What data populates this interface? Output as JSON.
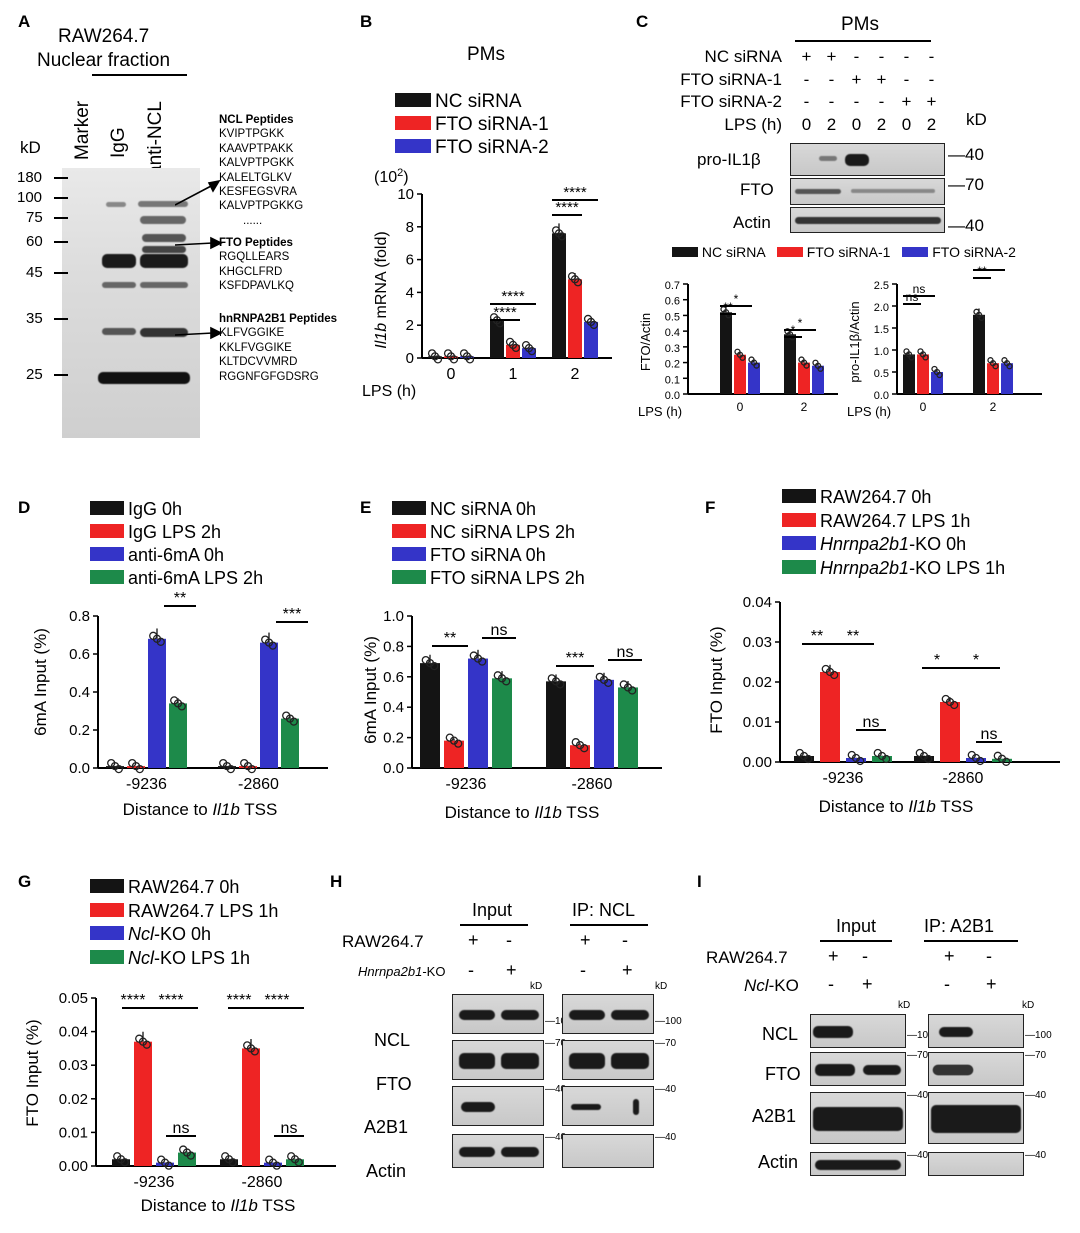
{
  "panels": {
    "A": {
      "label": "A",
      "cell": "RAW264.7",
      "fraction": "Nuclear fraction",
      "kd": "kD",
      "lanes": [
        "Marker",
        "IgG",
        "anti-NCL"
      ],
      "ladder": [
        "180",
        "100",
        "75",
        "60",
        "45",
        "35",
        "25"
      ],
      "ncl_title": "NCL Peptides",
      "ncl": [
        "KVIPTPGKK",
        "KAAVPTPAKK",
        "KALVPTPGKK",
        "KALELTGLKV",
        "KESFEGSVRA",
        "KALVPTPGKKG",
        "......"
      ],
      "fto_title": "FTO Peptides",
      "fto": [
        "RGQLLEARS",
        "KHGCLFRD",
        "KSFDPAVLKQ"
      ],
      "hn_title": "hnRNPA2B1 Peptides",
      "hn": [
        "KLFVGGIKE",
        "KKLFVGGIKE",
        "KLTDCVVMRD",
        "RGGNFGFGDSRG"
      ]
    },
    "B": {
      "label": "B",
      "title": "PMs",
      "legend": [
        "NC siRNA",
        "FTO siRNA-1",
        "FTO siRNA-2"
      ],
      "exp": "(10",
      "exp_sup": "2",
      "exp_close": ")",
      "ylabel_italic": "Il1b",
      "ylabel_rest": " mRNA (fold)",
      "yticks": [
        "0",
        "2",
        "4",
        "6",
        "8",
        "10"
      ],
      "xlabel": "LPS (h)",
      "xticks": [
        "0",
        "1",
        "2"
      ],
      "sig": [
        "****",
        "****",
        "****",
        "****"
      ]
    },
    "C": {
      "label": "C",
      "title": "PMs",
      "rows": [
        "NC siRNA",
        "FTO siRNA-1",
        "FTO siRNA-2",
        "LPS (h)"
      ],
      "signs": [
        [
          "+",
          "+",
          "-",
          "-",
          "-",
          "-"
        ],
        [
          "-",
          "-",
          "+",
          "+",
          "-",
          "-"
        ],
        [
          "-",
          "-",
          "-",
          "-",
          "+",
          "+"
        ],
        [
          "0",
          "2",
          "0",
          "2",
          "0",
          "2"
        ]
      ],
      "kd": "kD",
      "blots": [
        "pro-IL1β",
        "FTO",
        "Actin"
      ],
      "kdvals": [
        "40",
        "70",
        "40"
      ],
      "legend": [
        "NC siRNA",
        "FTO siRNA-1",
        "FTO siRNA-2"
      ],
      "g1": {
        "ylabel": "FTO/Actin",
        "yticks": [
          "0.0",
          "0.1",
          "0.2",
          "0.3",
          "0.4",
          "0.5",
          "0.6",
          "0.7"
        ],
        "xlabel": "LPS (h)",
        "xticks": [
          "0",
          "2"
        ],
        "sig": [
          "**",
          "*",
          "*",
          "*"
        ]
      },
      "g2": {
        "ylabel": "pro-IL1β/Actin",
        "yticks": [
          "0.0",
          "0.5",
          "1.0",
          "1.5",
          "2.0",
          "2.5"
        ],
        "xlabel": "LPS (h)",
        "xticks": [
          "0",
          "2"
        ],
        "sig": [
          "ns",
          "ns",
          "**",
          "*"
        ]
      }
    },
    "D": {
      "label": "D",
      "legend": [
        "IgG 0h",
        "IgG LPS 2h",
        "anti-6mA 0h",
        "anti-6mA LPS 2h"
      ],
      "ylabel": "6mA Input (%)",
      "yticks": [
        "0.0",
        "0.2",
        "0.4",
        "0.6",
        "0.8"
      ],
      "xticks": [
        "-9236",
        "-2860"
      ],
      "xlabel": "Distance to ",
      "xlabel_it": "Il1b",
      "xlabel_end": " TSS",
      "sig": [
        "**",
        "***"
      ]
    },
    "E": {
      "label": "E",
      "legend": [
        "NC siRNA 0h",
        "NC siRNA LPS 2h",
        "FTO siRNA 0h",
        "FTO siRNA LPS 2h"
      ],
      "ylabel": "6mA Input (%)",
      "yticks": [
        "0.0",
        "0.2",
        "0.4",
        "0.6",
        "0.8",
        "1.0"
      ],
      "xticks": [
        "-9236",
        "-2860"
      ],
      "xlabel": "Distance to ",
      "xlabel_it": "Il1b",
      "xlabel_end": " TSS",
      "sig": [
        "**",
        "ns",
        "***",
        "ns"
      ]
    },
    "F": {
      "label": "F",
      "legend": [
        "RAW264.7 0h",
        "RAW264.7 LPS 1h",
        "Hnrnpa2b1",
        "-KO 0h",
        "Hnrnpa2b1",
        "-KO LPS 1h"
      ],
      "ylabel": "FTO Input (%)",
      "yticks": [
        "0.00",
        "0.01",
        "0.02",
        "0.03",
        "0.04"
      ],
      "xticks": [
        "-9236",
        "-2860"
      ],
      "xlabel": "Distance to ",
      "xlabel_it": "Il1b",
      "xlabel_end": " TSS",
      "sig": [
        "**",
        "**",
        "ns",
        "*",
        "*",
        "ns"
      ]
    },
    "G": {
      "label": "G",
      "legend": [
        "RAW264.7 0h",
        "RAW264.7 LPS 1h",
        "Ncl",
        "-KO 0h",
        "Ncl",
        "-KO LPS 1h"
      ],
      "ylabel": "FTO Input (%)",
      "yticks": [
        "0.00",
        "0.01",
        "0.02",
        "0.03",
        "0.04",
        "0.05"
      ],
      "xticks": [
        "-9236",
        "-2860"
      ],
      "xlabel": "Distance to ",
      "xlabel_it": "Il1b",
      "xlabel_end": " TSS",
      "sig": [
        "****",
        "****",
        "ns",
        "****",
        "****",
        "ns"
      ]
    },
    "H": {
      "label": "H",
      "input": "Input",
      "ip": "IP: NCL",
      "row1": "RAW264.7",
      "row2": "Hnrnpa2b1",
      "row2b": "-KO",
      "signs1": [
        "+",
        "-",
        "+",
        "-"
      ],
      "signs2": [
        "-",
        "+",
        "-",
        "+"
      ],
      "blots": [
        "NCL",
        "FTO",
        "A2B1",
        "Actin"
      ],
      "kd": "kD",
      "kdvals": [
        "100",
        "70",
        "40",
        "40"
      ]
    },
    "I": {
      "label": "I",
      "input": "Input",
      "ip": "IP: A2B1",
      "row1": "RAW264.7",
      "row2": "Ncl",
      "row2b": "-KO",
      "signs1": [
        "+",
        "-",
        "+",
        "-"
      ],
      "signs2": [
        "-",
        "+",
        "-",
        "+"
      ],
      "blots": [
        "NCL",
        "FTO",
        "A2B1",
        "Actin"
      ],
      "kd": "kD",
      "kdvals": [
        "100",
        "70",
        "40",
        "40"
      ]
    }
  },
  "colors": {
    "black": "#141414",
    "red": "#ee2424",
    "blue": "#3434c8",
    "green": "#1d8a4a"
  },
  "chart_data": [
    {
      "type": "bar",
      "panel": "B",
      "categories": [
        "0",
        "1",
        "2"
      ],
      "series": [
        {
          "name": "NC siRNA",
          "values": [
            0.1,
            2.3,
            7.6
          ]
        },
        {
          "name": "FTO siRNA-1",
          "values": [
            0.1,
            0.8,
            4.8
          ]
        },
        {
          "name": "FTO siRNA-2",
          "values": [
            0.1,
            0.6,
            2.2
          ]
        }
      ],
      "ylim": [
        0,
        10
      ]
    },
    {
      "type": "bar",
      "panel": "C1",
      "categories": [
        "0",
        "2"
      ],
      "series": [
        {
          "name": "NC siRNA",
          "values": [
            0.52,
            0.38
          ]
        },
        {
          "name": "FTO siRNA-1",
          "values": [
            0.25,
            0.2
          ]
        },
        {
          "name": "FTO siRNA-2",
          "values": [
            0.2,
            0.18
          ]
        }
      ],
      "ylim": [
        0,
        0.7
      ]
    },
    {
      "type": "bar",
      "panel": "C2",
      "categories": [
        "0",
        "2"
      ],
      "series": [
        {
          "name": "NC siRNA",
          "values": [
            0.9,
            1.8
          ]
        },
        {
          "name": "FTO siRNA-1",
          "values": [
            0.9,
            0.7
          ]
        },
        {
          "name": "FTO siRNA-2",
          "values": [
            0.5,
            0.7
          ]
        }
      ],
      "ylim": [
        0,
        2.5
      ]
    },
    {
      "type": "bar",
      "panel": "D",
      "categories": [
        "-9236",
        "-2860"
      ],
      "series": [
        {
          "name": "IgG 0h",
          "values": [
            0.01,
            0.01
          ]
        },
        {
          "name": "IgG LPS 2h",
          "values": [
            0.01,
            0.01
          ]
        },
        {
          "name": "anti-6mA 0h",
          "values": [
            0.68,
            0.66
          ]
        },
        {
          "name": "anti-6mA LPS 2h",
          "values": [
            0.34,
            0.26
          ]
        }
      ],
      "ylim": [
        0,
        0.8
      ]
    },
    {
      "type": "bar",
      "panel": "E",
      "categories": [
        "-9236",
        "-2860"
      ],
      "series": [
        {
          "name": "NC siRNA 0h",
          "values": [
            0.69,
            0.57
          ]
        },
        {
          "name": "NC siRNA LPS 2h",
          "values": [
            0.18,
            0.15
          ]
        },
        {
          "name": "FTO siRNA 0h",
          "values": [
            0.72,
            0.58
          ]
        },
        {
          "name": "FTO siRNA LPS 2h",
          "values": [
            0.59,
            0.53
          ]
        }
      ],
      "ylim": [
        0,
        1.0
      ]
    },
    {
      "type": "bar",
      "panel": "F",
      "categories": [
        "-9236",
        "-2860"
      ],
      "series": [
        {
          "name": "RAW264.7 0h",
          "values": [
            0.0015,
            0.0015
          ]
        },
        {
          "name": "RAW264.7 LPS 1h",
          "values": [
            0.0225,
            0.015
          ]
        },
        {
          "name": "Hnrnpa2b1-KO 0h",
          "values": [
            0.001,
            0.001
          ]
        },
        {
          "name": "Hnrnpa2b1-KO LPS 1h",
          "values": [
            0.0015,
            0.0008
          ]
        }
      ],
      "ylim": [
        0,
        0.04
      ]
    },
    {
      "type": "bar",
      "panel": "G",
      "categories": [
        "-9236",
        "-2860"
      ],
      "series": [
        {
          "name": "RAW264.7 0h",
          "values": [
            0.002,
            0.002
          ]
        },
        {
          "name": "RAW264.7 LPS 1h",
          "values": [
            0.037,
            0.035
          ]
        },
        {
          "name": "Ncl-KO 0h",
          "values": [
            0.001,
            0.001
          ]
        },
        {
          "name": "Ncl-KO LPS 1h",
          "values": [
            0.004,
            0.002
          ]
        }
      ],
      "ylim": [
        0,
        0.05
      ]
    }
  ]
}
